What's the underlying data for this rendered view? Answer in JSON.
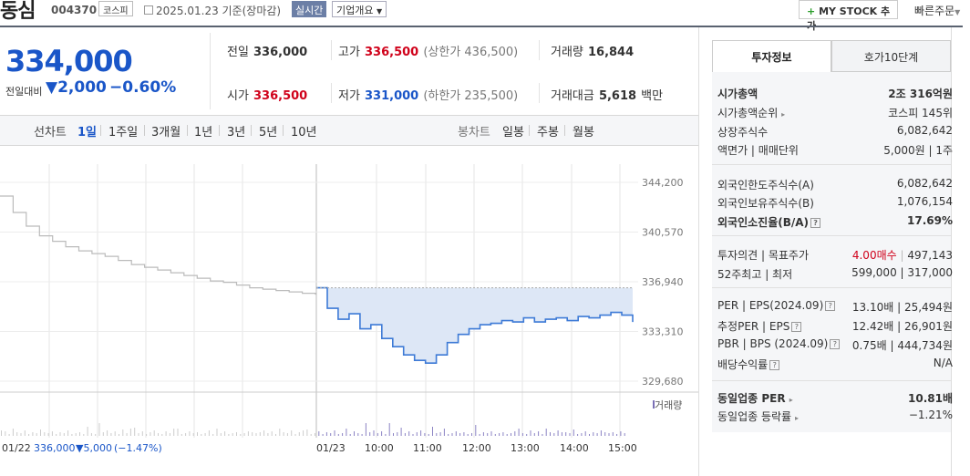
{
  "header": {
    "name": "동심",
    "code": "004370",
    "market_badge": "코스피",
    "date": "2025.01.23 기준(장마감)",
    "realtime": "실시간",
    "corp_info": "기업개요",
    "my_stock": "MY STOCK 추가",
    "my_stock_plus": "+",
    "quick_order": "빠른주문"
  },
  "quote": {
    "price": "334,000",
    "change_label": "전일대비",
    "change": "▼2,000",
    "change_pct": "−0.60%",
    "prev_label": "전일",
    "prev": "336,000",
    "high_label": "고가",
    "high": "336,500",
    "upper_limit": "(상한가 436,500)",
    "volume_label": "거래량",
    "volume": "16,844",
    "open_label": "시가",
    "open": "336,500",
    "low_label": "저가",
    "low": "331,000",
    "lower_limit": "(하한가 235,500)",
    "amount_label": "거래대금",
    "amount": "5,618",
    "amount_unit": "백만"
  },
  "periods": {
    "line_chart_label": "선차트",
    "items": [
      "1일",
      "1주일",
      "3개월",
      "1년",
      "3년",
      "5년",
      "10년"
    ],
    "selected": "1일",
    "candle_label": "봉차트",
    "candles": [
      "일봉",
      "주봉",
      "월봉"
    ]
  },
  "chart_data": {
    "type": "line",
    "y_ticks": [
      "344,200",
      "340,570",
      "336,940",
      "333,310",
      "329,680"
    ],
    "ylim": [
      329680,
      344200
    ],
    "x_ticks": [
      "01/23",
      "10:00",
      "11:00",
      "12:00",
      "13:00",
      "14:00",
      "15:00"
    ],
    "volume_label": "거래량",
    "prev_day_info": {
      "date": "01/22",
      "price": "336,000",
      "change": "▼5,000",
      "pct": "(−1.47%)"
    },
    "series": [
      {
        "name": "prev-day",
        "values": [
          343200,
          342000,
          341000,
          340300,
          339900,
          339500,
          339200,
          339000,
          338800,
          338500,
          338200,
          338000,
          337800,
          337600,
          337400,
          337200,
          337000,
          336900,
          336700,
          336500,
          336400,
          336300,
          336200,
          336100,
          336000
        ]
      },
      {
        "name": "today",
        "values": [
          336500,
          335000,
          334200,
          334600,
          333500,
          333800,
          332800,
          332200,
          331600,
          331200,
          331000,
          331600,
          332500,
          333100,
          333500,
          333800,
          333900,
          334100,
          334000,
          334300,
          334000,
          334200,
          334300,
          334100,
          334400,
          334300,
          334500,
          334700,
          334500,
          334000
        ]
      }
    ]
  },
  "invest_tabs": [
    "투자정보",
    "호가10단계"
  ],
  "invest": [
    {
      "label": "시가총액",
      "value": "2조 316억원",
      "bold": true
    },
    {
      "label": "시가총액순위",
      "value": "코스피 145위"
    },
    {
      "label": "상장주식수",
      "value": "6,082,642"
    },
    {
      "label": "액면가 | 매매단위",
      "value": "5,000원 | 1주"
    },
    {
      "label": "외국인한도주식수(A)",
      "value": "6,082,642"
    },
    {
      "label": "외국인보유주식수(B)",
      "value": "1,076,154"
    },
    {
      "label": "외국인소진율(B/A)",
      "value": "17.69%",
      "bold": true
    },
    {
      "label": "투자의견 | 목표주가",
      "value_opinion": "4.00매수",
      "value_target": "497,143"
    },
    {
      "label": "52주최고 | 최저",
      "value": "599,000 | 317,000"
    },
    {
      "label": "PER | EPS(2024.09)",
      "value": "13.10배 | 25,494원"
    },
    {
      "label": "추정PER | EPS",
      "value": "12.42배 | 26,901원"
    },
    {
      "label": "PBR | BPS (2024.09)",
      "value": "0.75배 | 444,734원"
    },
    {
      "label": "배당수익률",
      "value": "N/A"
    },
    {
      "label": "동일업종 PER",
      "value": "10.81배",
      "bold": true
    },
    {
      "label": "동일업종 등락률",
      "value": "−1.21%"
    }
  ],
  "colors": {
    "up": "#d0021b",
    "down": "#1a56c8",
    "accent": "#5a6270"
  }
}
